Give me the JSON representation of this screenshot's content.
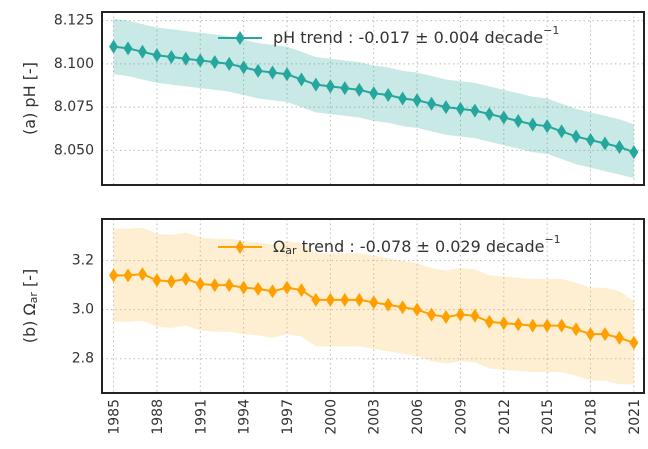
{
  "chart_data": [
    {
      "type": "line",
      "ylabel": {
        "text": "(a) pH [-]"
      },
      "x": [
        1985,
        1986,
        1987,
        1988,
        1989,
        1990,
        1991,
        1992,
        1993,
        1994,
        1995,
        1996,
        1997,
        1998,
        1999,
        2000,
        2001,
        2002,
        2003,
        2004,
        2005,
        2006,
        2007,
        2008,
        2009,
        2010,
        2011,
        2012,
        2013,
        2014,
        2015,
        2016,
        2017,
        2018,
        2019,
        2020,
        2021
      ],
      "series": [
        {
          "name": "pH trend : -0.017 ± 0.004  decade",
          "name_sup": "−1",
          "color": "#25a79d",
          "band_color": "#25a79d",
          "values": [
            8.11,
            8.109,
            8.107,
            8.105,
            8.104,
            8.103,
            8.102,
            8.101,
            8.1,
            8.098,
            8.096,
            8.095,
            8.094,
            8.091,
            8.088,
            8.087,
            8.086,
            8.085,
            8.083,
            8.082,
            8.08,
            8.079,
            8.077,
            8.075,
            8.074,
            8.073,
            8.071,
            8.069,
            8.067,
            8.065,
            8.064,
            8.061,
            8.058,
            8.056,
            8.054,
            8.052,
            8.049
          ],
          "upper": [
            8.126,
            8.125,
            8.123,
            8.121,
            8.12,
            8.119,
            8.118,
            8.117,
            8.116,
            8.114,
            8.112,
            8.111,
            8.11,
            8.107,
            8.104,
            8.103,
            8.102,
            8.101,
            8.099,
            8.098,
            8.096,
            8.095,
            8.093,
            8.091,
            8.09,
            8.089,
            8.087,
            8.085,
            8.083,
            8.081,
            8.08,
            8.077,
            8.074,
            8.072,
            8.07,
            8.068,
            8.065
          ],
          "lower": [
            8.094,
            8.093,
            8.091,
            8.089,
            8.088,
            8.087,
            8.086,
            8.085,
            8.084,
            8.082,
            8.08,
            8.079,
            8.078,
            8.075,
            8.072,
            8.071,
            8.07,
            8.069,
            8.067,
            8.066,
            8.064,
            8.063,
            8.061,
            8.059,
            8.058,
            8.057,
            8.055,
            8.053,
            8.051,
            8.049,
            8.048,
            8.045,
            8.042,
            8.04,
            8.038,
            8.036,
            8.034
          ]
        }
      ],
      "xlim": [
        1984.2,
        2021.7
      ],
      "xticks": [
        1985,
        1988,
        1991,
        1994,
        1997,
        2000,
        2003,
        2006,
        2009,
        2012,
        2015,
        2018,
        2021
      ],
      "ylim": [
        8.03,
        8.13
      ],
      "yticks": [
        {
          "value": 8.05,
          "label": "8.050"
        },
        {
          "value": 8.075,
          "label": "8.075"
        },
        {
          "value": 8.1,
          "label": "8.100"
        },
        {
          "value": 8.125,
          "label": "8.125"
        }
      ],
      "grid": true,
      "show_xtick_labels": false
    },
    {
      "type": "line",
      "ylabel": {
        "text": "(b) Ω",
        "sub": "ar",
        "after": " [-]"
      },
      "x": [
        1985,
        1986,
        1987,
        1988,
        1989,
        1990,
        1991,
        1992,
        1993,
        1994,
        1995,
        1996,
        1997,
        1998,
        1999,
        2000,
        2001,
        2002,
        2003,
        2004,
        2005,
        2006,
        2007,
        2008,
        2009,
        2010,
        2011,
        2012,
        2013,
        2014,
        2015,
        2016,
        2017,
        2018,
        2019,
        2020,
        2021
      ],
      "series": [
        {
          "name": "Ω",
          "name_sub": "ar",
          "name_after": " trend : -0.078 ± 0.029  decade",
          "name_sup": "−1",
          "color": "#ffa000",
          "band_color": "#ffc04d",
          "values": [
            3.14,
            3.14,
            3.145,
            3.12,
            3.115,
            3.125,
            3.105,
            3.1,
            3.1,
            3.09,
            3.085,
            3.075,
            3.09,
            3.08,
            3.04,
            3.04,
            3.04,
            3.04,
            3.03,
            3.02,
            3.01,
            3.0,
            2.98,
            2.97,
            2.98,
            2.975,
            2.95,
            2.945,
            2.94,
            2.935,
            2.935,
            2.935,
            2.92,
            2.9,
            2.9,
            2.885,
            2.865
          ],
          "upper": [
            3.33,
            3.33,
            3.335,
            3.31,
            3.305,
            3.315,
            3.295,
            3.29,
            3.29,
            3.28,
            3.275,
            3.265,
            3.28,
            3.27,
            3.23,
            3.23,
            3.23,
            3.23,
            3.22,
            3.21,
            3.2,
            3.19,
            3.17,
            3.16,
            3.17,
            3.165,
            3.14,
            3.135,
            3.13,
            3.125,
            3.125,
            3.125,
            3.11,
            3.09,
            3.09,
            3.075,
            3.035
          ],
          "lower": [
            2.95,
            2.95,
            2.955,
            2.93,
            2.925,
            2.935,
            2.915,
            2.91,
            2.91,
            2.9,
            2.895,
            2.885,
            2.9,
            2.89,
            2.85,
            2.85,
            2.85,
            2.85,
            2.84,
            2.83,
            2.82,
            2.81,
            2.79,
            2.78,
            2.79,
            2.785,
            2.76,
            2.755,
            2.75,
            2.745,
            2.745,
            2.745,
            2.73,
            2.71,
            2.71,
            2.695,
            2.695
          ]
        }
      ],
      "xlim": [
        1984.2,
        2021.7
      ],
      "xticks": [
        1985,
        1988,
        1991,
        1994,
        1997,
        2000,
        2003,
        2006,
        2009,
        2012,
        2015,
        2018,
        2021
      ],
      "ylim": [
        2.66,
        3.37
      ],
      "yticks": [
        2.8,
        {
          "value": 3,
          "label": "3.0"
        },
        3.2
      ],
      "grid": true,
      "show_xtick_labels": true
    }
  ]
}
